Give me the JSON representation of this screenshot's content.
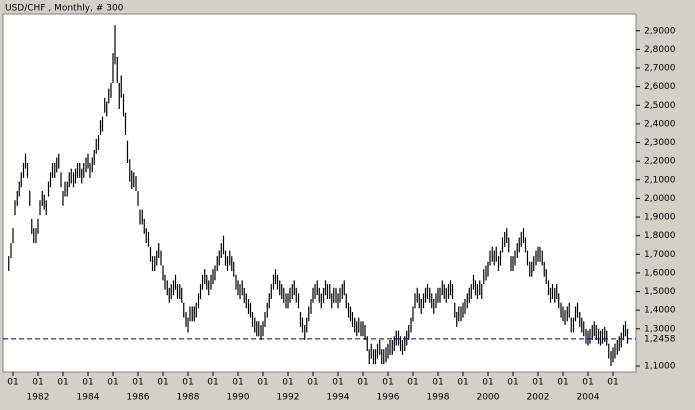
{
  "chart_data": {
    "type": "range",
    "title": "USD/CHF , Monthly, # 300",
    "color": "#000000",
    "x": [
      1980.83,
      1980.92,
      1981.0,
      1981.08,
      1981.17,
      1981.25,
      1981.33,
      1981.42,
      1981.5,
      1981.58,
      1981.67,
      1981.75,
      1981.83,
      1981.92,
      1982.0,
      1982.08,
      1982.17,
      1982.25,
      1982.33,
      1982.42,
      1982.5,
      1982.58,
      1982.67,
      1982.75,
      1982.83,
      1982.92,
      1983.0,
      1983.08,
      1983.17,
      1983.25,
      1983.33,
      1983.42,
      1983.5,
      1983.58,
      1983.67,
      1983.75,
      1983.83,
      1983.92,
      1984.0,
      1984.08,
      1984.17,
      1984.25,
      1984.33,
      1984.42,
      1984.5,
      1984.58,
      1984.67,
      1984.75,
      1984.83,
      1984.92,
      1985.0,
      1985.08,
      1985.17,
      1985.25,
      1985.33,
      1985.42,
      1985.5,
      1985.58,
      1985.67,
      1985.75,
      1985.83,
      1985.92,
      1986.0,
      1986.08,
      1986.17,
      1986.25,
      1986.33,
      1986.42,
      1986.5,
      1986.58,
      1986.67,
      1986.75,
      1986.83,
      1986.92,
      1987.0,
      1987.08,
      1987.17,
      1987.25,
      1987.33,
      1987.42,
      1987.5,
      1987.58,
      1987.67,
      1987.75,
      1987.83,
      1987.92,
      1988.0,
      1988.08,
      1988.17,
      1988.25,
      1988.33,
      1988.42,
      1988.5,
      1988.58,
      1988.67,
      1988.75,
      1988.83,
      1988.92,
      1989.0,
      1989.08,
      1989.17,
      1989.25,
      1989.33,
      1989.42,
      1989.5,
      1989.58,
      1989.67,
      1989.75,
      1989.83,
      1989.92,
      1990.0,
      1990.08,
      1990.17,
      1990.25,
      1990.33,
      1990.42,
      1990.5,
      1990.58,
      1990.67,
      1990.75,
      1990.83,
      1990.92,
      1991.0,
      1991.08,
      1991.17,
      1991.25,
      1991.33,
      1991.42,
      1991.5,
      1991.58,
      1991.67,
      1991.75,
      1991.83,
      1991.92,
      1992.0,
      1992.08,
      1992.17,
      1992.25,
      1992.33,
      1992.42,
      1992.5,
      1992.58,
      1992.67,
      1992.75,
      1992.83,
      1992.92,
      1993.0,
      1993.08,
      1993.17,
      1993.25,
      1993.33,
      1993.42,
      1993.5,
      1993.58,
      1993.67,
      1993.75,
      1993.83,
      1993.92,
      1994.0,
      1994.08,
      1994.17,
      1994.25,
      1994.33,
      1994.42,
      1994.5,
      1994.58,
      1994.67,
      1994.75,
      1994.83,
      1994.92,
      1995.0,
      1995.08,
      1995.17,
      1995.25,
      1995.33,
      1995.42,
      1995.5,
      1995.58,
      1995.67,
      1995.75,
      1995.83,
      1995.92,
      1996.0,
      1996.08,
      1996.17,
      1996.25,
      1996.33,
      1996.42,
      1996.5,
      1996.58,
      1996.67,
      1996.75,
      1996.83,
      1996.92,
      1997.0,
      1997.08,
      1997.17,
      1997.25,
      1997.33,
      1997.42,
      1997.5,
      1997.58,
      1997.67,
      1997.75,
      1997.83,
      1997.92,
      1998.0,
      1998.08,
      1998.17,
      1998.25,
      1998.33,
      1998.42,
      1998.5,
      1998.58,
      1998.67,
      1998.75,
      1998.83,
      1998.92,
      1999.0,
      1999.08,
      1999.17,
      1999.25,
      1999.33,
      1999.42,
      1999.5,
      1999.58,
      1999.67,
      1999.75,
      1999.83,
      1999.92,
      2000.0,
      2000.08,
      2000.17,
      2000.25,
      2000.33,
      2000.42,
      2000.5,
      2000.58,
      2000.67,
      2000.75,
      2000.83,
      2000.92,
      2001.0,
      2001.08,
      2001.17,
      2001.25,
      2001.33,
      2001.42,
      2001.5,
      2001.58,
      2001.67,
      2001.75,
      2001.83,
      2001.92,
      2002.0,
      2002.08,
      2002.17,
      2002.25,
      2002.33,
      2002.42,
      2002.5,
      2002.58,
      2002.67,
      2002.75,
      2002.83,
      2002.92,
      2003.0,
      2003.08,
      2003.17,
      2003.25,
      2003.33,
      2003.42,
      2003.5,
      2003.58,
      2003.67,
      2003.75,
      2003.83,
      2003.92,
      2004.0,
      2004.08,
      2004.17,
      2004.25,
      2004.33,
      2004.42,
      2004.5,
      2004.58,
      2004.67,
      2004.75,
      2004.83,
      2004.92,
      2005.0,
      2005.08,
      2005.17,
      2005.25,
      2005.33,
      2005.42,
      2005.5,
      2005.58
    ],
    "high": [
      1.69,
      1.76,
      1.84,
      1.99,
      2.04,
      2.09,
      2.14,
      2.19,
      2.24,
      2.19,
      2.04,
      1.89,
      1.84,
      1.84,
      1.89,
      1.99,
      2.04,
      2.02,
      1.99,
      2.09,
      2.14,
      2.19,
      2.19,
      2.22,
      2.24,
      2.14,
      2.04,
      2.09,
      2.09,
      2.14,
      2.16,
      2.14,
      2.16,
      2.19,
      2.19,
      2.16,
      2.19,
      2.22,
      2.24,
      2.19,
      2.22,
      2.26,
      2.32,
      2.34,
      2.42,
      2.44,
      2.54,
      2.52,
      2.59,
      2.62,
      2.78,
      2.93,
      2.76,
      2.62,
      2.66,
      2.56,
      2.46,
      2.31,
      2.21,
      2.15,
      2.14,
      2.12,
      2.04,
      1.94,
      1.94,
      1.89,
      1.84,
      1.82,
      1.74,
      1.69,
      1.69,
      1.72,
      1.76,
      1.72,
      1.64,
      1.59,
      1.56,
      1.52,
      1.54,
      1.56,
      1.59,
      1.54,
      1.54,
      1.52,
      1.44,
      1.39,
      1.36,
      1.42,
      1.42,
      1.42,
      1.44,
      1.49,
      1.54,
      1.59,
      1.62,
      1.59,
      1.56,
      1.59,
      1.62,
      1.64,
      1.69,
      1.72,
      1.76,
      1.8,
      1.72,
      1.69,
      1.72,
      1.69,
      1.66,
      1.59,
      1.56,
      1.54,
      1.56,
      1.52,
      1.49,
      1.46,
      1.44,
      1.39,
      1.36,
      1.34,
      1.34,
      1.32,
      1.34,
      1.39,
      1.44,
      1.49,
      1.54,
      1.59,
      1.62,
      1.59,
      1.56,
      1.54,
      1.52,
      1.49,
      1.49,
      1.52,
      1.54,
      1.56,
      1.52,
      1.49,
      1.39,
      1.36,
      1.32,
      1.36,
      1.42,
      1.46,
      1.52,
      1.54,
      1.56,
      1.52,
      1.49,
      1.52,
      1.56,
      1.54,
      1.54,
      1.49,
      1.52,
      1.52,
      1.49,
      1.52,
      1.54,
      1.56,
      1.49,
      1.44,
      1.42,
      1.39,
      1.36,
      1.34,
      1.36,
      1.34,
      1.34,
      1.32,
      1.26,
      1.19,
      1.22,
      1.19,
      1.19,
      1.22,
      1.24,
      1.19,
      1.19,
      1.2,
      1.22,
      1.24,
      1.24,
      1.26,
      1.29,
      1.29,
      1.26,
      1.24,
      1.26,
      1.29,
      1.32,
      1.36,
      1.42,
      1.49,
      1.52,
      1.49,
      1.46,
      1.49,
      1.52,
      1.54,
      1.52,
      1.49,
      1.46,
      1.49,
      1.52,
      1.52,
      1.56,
      1.54,
      1.52,
      1.54,
      1.56,
      1.54,
      1.44,
      1.39,
      1.42,
      1.42,
      1.44,
      1.46,
      1.49,
      1.52,
      1.54,
      1.59,
      1.56,
      1.54,
      1.56,
      1.54,
      1.62,
      1.64,
      1.66,
      1.72,
      1.74,
      1.72,
      1.74,
      1.69,
      1.72,
      1.79,
      1.82,
      1.84,
      1.79,
      1.69,
      1.69,
      1.72,
      1.76,
      1.79,
      1.82,
      1.84,
      1.79,
      1.72,
      1.66,
      1.66,
      1.69,
      1.72,
      1.74,
      1.74,
      1.72,
      1.66,
      1.62,
      1.56,
      1.52,
      1.54,
      1.52,
      1.54,
      1.49,
      1.44,
      1.42,
      1.4,
      1.42,
      1.44,
      1.36,
      1.36,
      1.42,
      1.44,
      1.39,
      1.36,
      1.34,
      1.3,
      1.29,
      1.3,
      1.32,
      1.34,
      1.32,
      1.3,
      1.29,
      1.3,
      1.31,
      1.29,
      1.22,
      1.18,
      1.2,
      1.22,
      1.24,
      1.26,
      1.28,
      1.32,
      1.34,
      1.3
    ],
    "low": [
      1.61,
      1.68,
      1.76,
      1.91,
      1.96,
      2.01,
      2.06,
      2.11,
      2.16,
      2.11,
      1.96,
      1.81,
      1.76,
      1.76,
      1.81,
      1.91,
      1.96,
      1.94,
      1.91,
      2.01,
      2.06,
      2.11,
      2.11,
      2.14,
      2.16,
      2.06,
      1.96,
      2.01,
      2.01,
      2.06,
      2.08,
      2.06,
      2.08,
      2.11,
      2.11,
      2.08,
      2.11,
      2.14,
      2.16,
      2.11,
      2.14,
      2.18,
      2.24,
      2.26,
      2.34,
      2.36,
      2.46,
      2.44,
      2.51,
      2.54,
      2.62,
      2.72,
      2.62,
      2.48,
      2.54,
      2.44,
      2.34,
      2.19,
      2.09,
      2.05,
      2.06,
      2.04,
      1.96,
      1.86,
      1.86,
      1.81,
      1.76,
      1.74,
      1.66,
      1.61,
      1.61,
      1.64,
      1.68,
      1.64,
      1.56,
      1.51,
      1.48,
      1.44,
      1.46,
      1.48,
      1.51,
      1.46,
      1.46,
      1.44,
      1.36,
      1.31,
      1.28,
      1.34,
      1.34,
      1.34,
      1.36,
      1.41,
      1.46,
      1.51,
      1.54,
      1.51,
      1.48,
      1.51,
      1.54,
      1.56,
      1.61,
      1.64,
      1.68,
      1.7,
      1.64,
      1.61,
      1.64,
      1.61,
      1.58,
      1.51,
      1.48,
      1.46,
      1.48,
      1.44,
      1.41,
      1.38,
      1.36,
      1.31,
      1.28,
      1.26,
      1.26,
      1.24,
      1.26,
      1.31,
      1.36,
      1.41,
      1.46,
      1.51,
      1.54,
      1.51,
      1.48,
      1.46,
      1.44,
      1.41,
      1.41,
      1.44,
      1.46,
      1.48,
      1.44,
      1.41,
      1.31,
      1.28,
      1.24,
      1.28,
      1.34,
      1.38,
      1.44,
      1.46,
      1.48,
      1.44,
      1.41,
      1.44,
      1.48,
      1.46,
      1.46,
      1.41,
      1.44,
      1.44,
      1.41,
      1.44,
      1.46,
      1.48,
      1.41,
      1.36,
      1.34,
      1.31,
      1.28,
      1.26,
      1.28,
      1.26,
      1.26,
      1.24,
      1.18,
      1.11,
      1.14,
      1.11,
      1.11,
      1.14,
      1.16,
      1.11,
      1.11,
      1.12,
      1.14,
      1.16,
      1.16,
      1.18,
      1.21,
      1.21,
      1.18,
      1.16,
      1.18,
      1.21,
      1.24,
      1.28,
      1.34,
      1.41,
      1.44,
      1.41,
      1.38,
      1.41,
      1.44,
      1.46,
      1.44,
      1.41,
      1.38,
      1.41,
      1.44,
      1.44,
      1.48,
      1.46,
      1.44,
      1.46,
      1.48,
      1.46,
      1.36,
      1.31,
      1.34,
      1.34,
      1.36,
      1.38,
      1.41,
      1.44,
      1.46,
      1.51,
      1.48,
      1.46,
      1.48,
      1.46,
      1.54,
      1.56,
      1.58,
      1.64,
      1.66,
      1.64,
      1.66,
      1.61,
      1.64,
      1.71,
      1.74,
      1.76,
      1.71,
      1.61,
      1.61,
      1.64,
      1.68,
      1.71,
      1.74,
      1.76,
      1.71,
      1.64,
      1.58,
      1.58,
      1.61,
      1.64,
      1.66,
      1.66,
      1.64,
      1.58,
      1.54,
      1.48,
      1.44,
      1.46,
      1.44,
      1.46,
      1.41,
      1.36,
      1.34,
      1.32,
      1.34,
      1.36,
      1.28,
      1.28,
      1.34,
      1.36,
      1.31,
      1.28,
      1.26,
      1.22,
      1.21,
      1.22,
      1.24,
      1.26,
      1.24,
      1.22,
      1.21,
      1.22,
      1.23,
      1.21,
      1.14,
      1.1,
      1.12,
      1.14,
      1.16,
      1.18,
      1.2,
      1.24,
      1.26,
      1.22
    ],
    "xlim": [
      1980.6,
      2005.92
    ],
    "xticks": [
      {
        "value": 1981,
        "label": "01"
      },
      {
        "value": 1982,
        "label": "01"
      },
      {
        "value": 1983,
        "label": "01"
      },
      {
        "value": 1984,
        "label": "01"
      },
      {
        "value": 1985,
        "label": "01"
      },
      {
        "value": 1986,
        "label": "01"
      },
      {
        "value": 1987,
        "label": "01"
      },
      {
        "value": 1988,
        "label": "01"
      },
      {
        "value": 1989,
        "label": "01"
      },
      {
        "value": 1990,
        "label": "01"
      },
      {
        "value": 1991,
        "label": "01"
      },
      {
        "value": 1992,
        "label": "01"
      },
      {
        "value": 1993,
        "label": "01"
      },
      {
        "value": 1994,
        "label": "01"
      },
      {
        "value": 1995,
        "label": "01"
      },
      {
        "value": 1996,
        "label": "01"
      },
      {
        "value": 1997,
        "label": "01"
      },
      {
        "value": 1998,
        "label": "01"
      },
      {
        "value": 1999,
        "label": "01"
      },
      {
        "value": 2000,
        "label": "01"
      },
      {
        "value": 2001,
        "label": "01"
      },
      {
        "value": 2002,
        "label": "01"
      },
      {
        "value": 2003,
        "label": "01"
      },
      {
        "value": 2004,
        "label": "01"
      },
      {
        "value": 2005,
        "label": "01"
      }
    ],
    "year_labels": [
      1982,
      1984,
      1986,
      1988,
      1990,
      1992,
      1994,
      1996,
      1998,
      2000,
      2002,
      2004
    ],
    "ylim": [
      1.068,
      2.99
    ],
    "yticks": [
      {
        "value": 1.1,
        "label": "1,1000"
      },
      {
        "value": 1.3,
        "label": "1,3000"
      },
      {
        "value": 1.4,
        "label": "1,4000"
      },
      {
        "value": 1.5,
        "label": "1,5000"
      },
      {
        "value": 1.6,
        "label": "1,6000"
      },
      {
        "value": 1.7,
        "label": "1,7000"
      },
      {
        "value": 1.8,
        "label": "1,8000"
      },
      {
        "value": 1.9,
        "label": "1,9000"
      },
      {
        "value": 2.0,
        "label": "2,0000"
      },
      {
        "value": 2.1,
        "label": "2,1000"
      },
      {
        "value": 2.2,
        "label": "2,2000"
      },
      {
        "value": 2.3,
        "label": "2,3000"
      },
      {
        "value": 2.4,
        "label": "2,4000"
      },
      {
        "value": 2.5,
        "label": "2,5000"
      },
      {
        "value": 2.6,
        "label": "2,6000"
      },
      {
        "value": 2.7,
        "label": "2,7000"
      },
      {
        "value": 2.8,
        "label": "2,8000"
      },
      {
        "value": 2.9,
        "label": "2,9000"
      }
    ],
    "reference_line": {
      "value": 1.2458,
      "label": "1,2458",
      "color": "#00008b"
    }
  }
}
